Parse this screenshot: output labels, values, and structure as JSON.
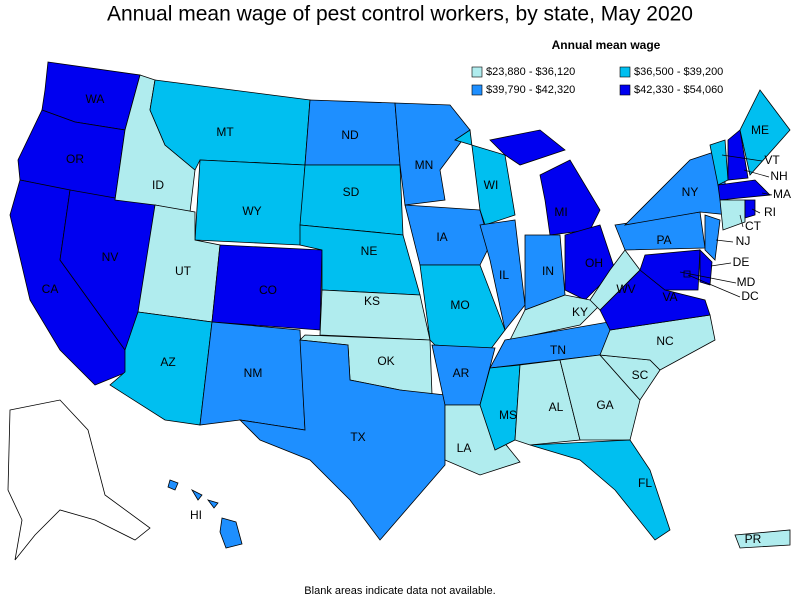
{
  "title": "Annual mean wage of pest control workers, by state, May 2020",
  "legend": {
    "title": "Annual mean wage",
    "entries": [
      {
        "label": "$23,880 - $36,120",
        "color": "#b0ecee"
      },
      {
        "label": "$36,500 - $39,200",
        "color": "#00bff0"
      },
      {
        "label": "$39,790 - $42,320",
        "color": "#1e8fff"
      },
      {
        "label": "$42,330 - $54,060",
        "color": "#0000f0"
      }
    ]
  },
  "states": [
    {
      "label": "WA",
      "bin": 3
    },
    {
      "label": "OR",
      "bin": 3
    },
    {
      "label": "CA",
      "bin": 3
    },
    {
      "label": "NV",
      "bin": 3
    },
    {
      "label": "ID",
      "bin": 0
    },
    {
      "label": "MT",
      "bin": 1
    },
    {
      "label": "WY",
      "bin": 1
    },
    {
      "label": "UT",
      "bin": 0
    },
    {
      "label": "CO",
      "bin": 3
    },
    {
      "label": "AZ",
      "bin": 1
    },
    {
      "label": "NM",
      "bin": 2
    },
    {
      "label": "ND",
      "bin": 2
    },
    {
      "label": "SD",
      "bin": 1
    },
    {
      "label": "NE",
      "bin": 1
    },
    {
      "label": "KS",
      "bin": 0
    },
    {
      "label": "OK",
      "bin": 0
    },
    {
      "label": "TX",
      "bin": 2
    },
    {
      "label": "MN",
      "bin": 2
    },
    {
      "label": "IA",
      "bin": 2
    },
    {
      "label": "MO",
      "bin": 1
    },
    {
      "label": "AR",
      "bin": 2
    },
    {
      "label": "LA",
      "bin": 0
    },
    {
      "label": "WI",
      "bin": 1
    },
    {
      "label": "IL",
      "bin": 2
    },
    {
      "label": "MI",
      "bin": 3
    },
    {
      "label": "IN",
      "bin": 2
    },
    {
      "label": "OH",
      "bin": 3
    },
    {
      "label": "KY",
      "bin": 0
    },
    {
      "label": "TN",
      "bin": 2
    },
    {
      "label": "MS",
      "bin": 1
    },
    {
      "label": "AL",
      "bin": 0
    },
    {
      "label": "GA",
      "bin": 0
    },
    {
      "label": "FL",
      "bin": 1
    },
    {
      "label": "SC",
      "bin": 0
    },
    {
      "label": "NC",
      "bin": 0
    },
    {
      "label": "VA",
      "bin": 3
    },
    {
      "label": "WV",
      "bin": 0
    },
    {
      "label": "MD",
      "bin": 3
    },
    {
      "label": "DE",
      "bin": 3
    },
    {
      "label": "PA",
      "bin": 2
    },
    {
      "label": "NJ",
      "bin": 2
    },
    {
      "label": "NY",
      "bin": 2
    },
    {
      "label": "VT",
      "bin": 1
    },
    {
      "label": "NH",
      "bin": 3
    },
    {
      "label": "ME",
      "bin": 1
    },
    {
      "label": "MA",
      "bin": 3
    },
    {
      "label": "CT",
      "bin": 0
    },
    {
      "label": "RI",
      "bin": 3
    },
    {
      "label": "DC",
      "bin": 3
    },
    {
      "label": "HI",
      "bin": 2
    },
    {
      "label": "PR",
      "bin": 0
    }
  ],
  "footnote": "Blank areas indicate data not available."
}
